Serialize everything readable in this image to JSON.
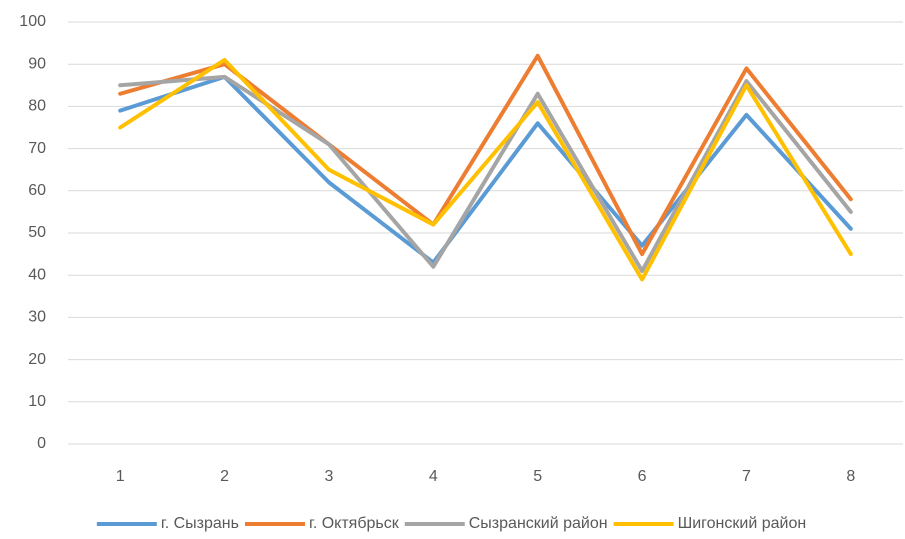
{
  "chart_data": {
    "type": "line",
    "categories": [
      1,
      2,
      3,
      4,
      5,
      6,
      7,
      8
    ],
    "series": [
      {
        "name": "г. Сызрань",
        "color": "#5b9bd5",
        "values": [
          79,
          87,
          62,
          43,
          76,
          47,
          78,
          51
        ]
      },
      {
        "name": "г. Октябрьск",
        "color": "#ed7d31",
        "values": [
          83,
          90,
          71,
          52,
          92,
          45,
          89,
          58
        ]
      },
      {
        "name": "Сызранский район",
        "color": "#a5a5a5",
        "values": [
          85,
          87,
          71,
          42,
          83,
          41,
          86,
          55
        ]
      },
      {
        "name": "Шигонский район",
        "color": "#ffc000",
        "values": [
          75,
          91,
          65,
          52,
          81,
          39,
          85,
          45
        ]
      }
    ],
    "ylim": [
      0,
      100
    ],
    "yticks": [
      0,
      10,
      20,
      30,
      40,
      50,
      60,
      70,
      80,
      90,
      100
    ],
    "grid": true,
    "legend": "bottom"
  }
}
